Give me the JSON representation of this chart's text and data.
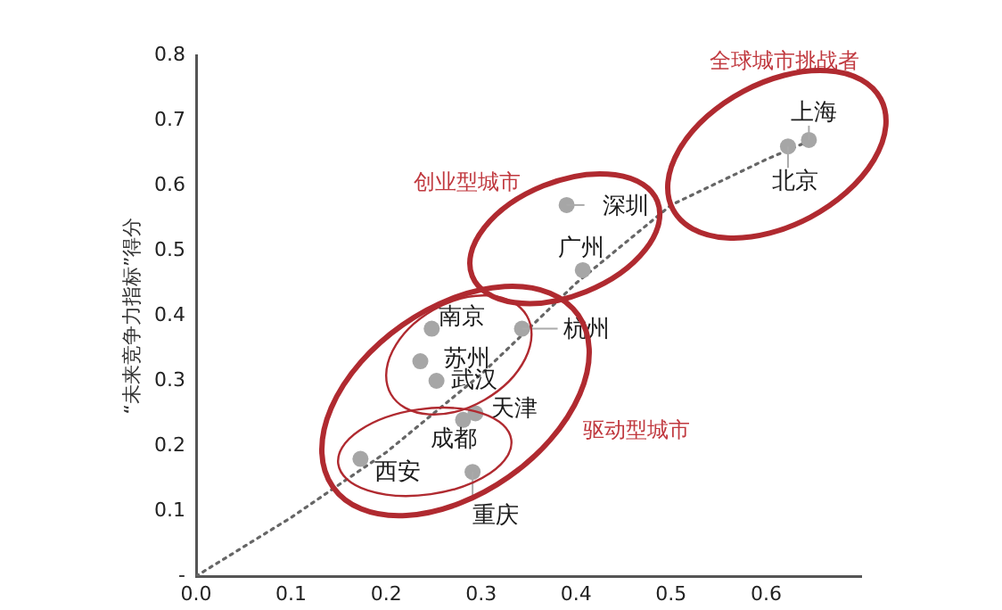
{
  "chart_data": {
    "type": "scatter",
    "ylabel": "“未来竞争力指标”得分",
    "xlim": [
      0,
      0.7
    ],
    "xticks": [
      {
        "value": 0,
        "label": "0.0"
      },
      0.1,
      0.2,
      0.3,
      0.4,
      0.5,
      0.6
    ],
    "ylim": [
      0,
      0.8
    ],
    "yticks": [
      {
        "value": 0,
        "label": "-"
      },
      0.1,
      0.2,
      0.3,
      0.4,
      0.5,
      0.6,
      0.7,
      0.8
    ],
    "grid": false,
    "legend": false,
    "marker": "circle",
    "series": [
      {
        "color": "#a6a6a6",
        "x": [
          0.645,
          0.623,
          0.39,
          0.407,
          0.343,
          0.248,
          0.236,
          0.253,
          0.294,
          0.281,
          0.173,
          0.291
        ],
        "values": [
          0.67,
          0.66,
          0.57,
          0.47,
          0.38,
          0.38,
          0.33,
          0.3,
          0.25,
          0.24,
          0.18,
          0.16
        ]
      },
      {
        "type": "line",
        "color": "#666666",
        "line_style": "dotted",
        "marker": "none",
        "x": [
          0,
          0.1,
          0.2,
          0.3,
          0.4,
          0.5,
          0.6,
          0.64
        ],
        "values": [
          0,
          0.09,
          0.19,
          0.31,
          0.45,
          0.57,
          0.64,
          0.665
        ]
      }
    ],
    "annotations": [
      {
        "text": "上海",
        "x": 0.645,
        "y": 0.67
      },
      {
        "text": "北京",
        "x": 0.623,
        "y": 0.66
      },
      {
        "text": "深圳",
        "x": 0.39,
        "y": 0.57
      },
      {
        "text": "广州",
        "x": 0.407,
        "y": 0.47
      },
      {
        "text": "杭州",
        "x": 0.343,
        "y": 0.38
      },
      {
        "text": "南京",
        "x": 0.248,
        "y": 0.38
      },
      {
        "text": "苏州",
        "x": 0.236,
        "y": 0.33
      },
      {
        "text": "武汉",
        "x": 0.253,
        "y": 0.3
      },
      {
        "text": "天津",
        "x": 0.294,
        "y": 0.25
      },
      {
        "text": "成都",
        "x": 0.281,
        "y": 0.24
      },
      {
        "text": "西安",
        "x": 0.173,
        "y": 0.18
      },
      {
        "text": "重庆",
        "x": 0.291,
        "y": 0.16
      },
      "全球城市挑战者",
      "创业型城市",
      "驱动型城市"
    ]
  }
}
